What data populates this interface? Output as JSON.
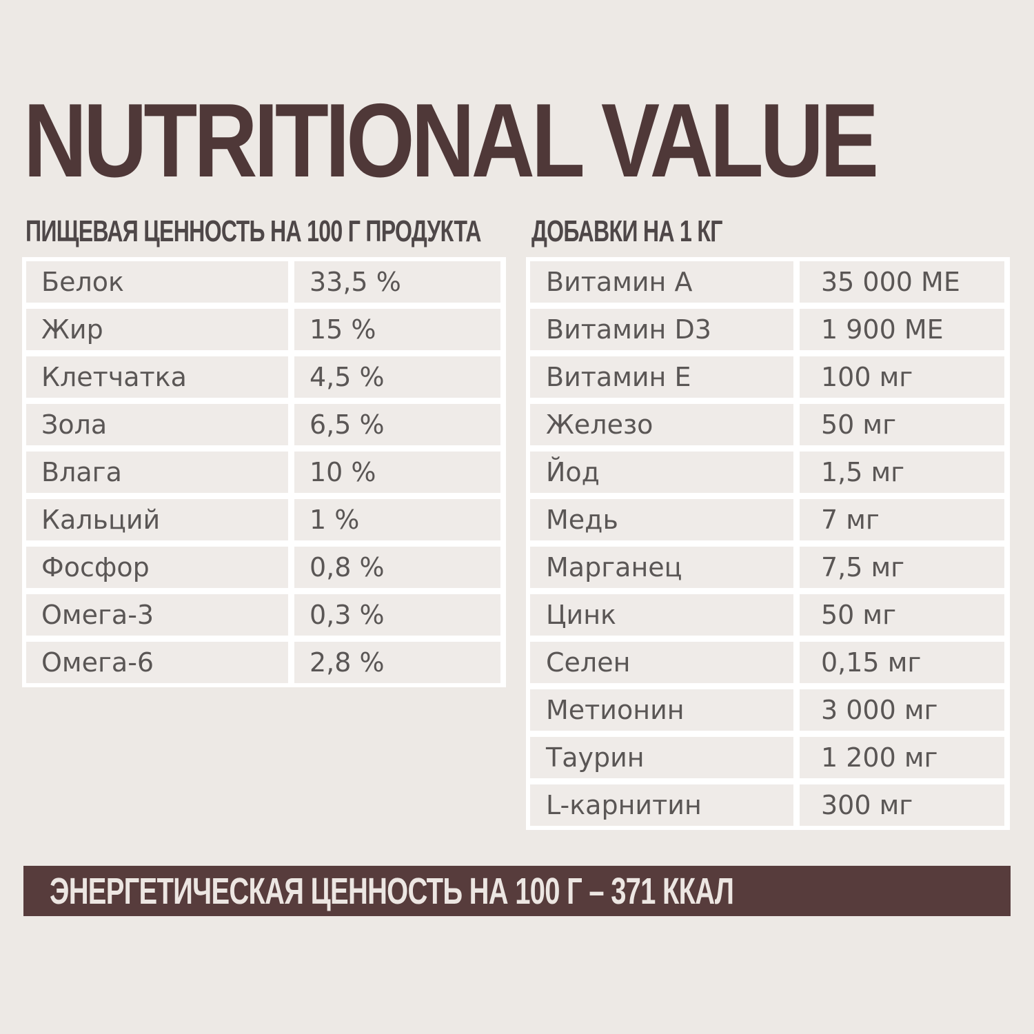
{
  "title": "NUTRITIONAL VALUE",
  "nutrition": {
    "heading": "ПИЩЕВАЯ ЦЕННОСТЬ НА 100 Г ПРОДУКТА",
    "rows": [
      {
        "name": "Белок",
        "value": "33,5 %"
      },
      {
        "name": "Жир",
        "value": "15 %"
      },
      {
        "name": "Клетчатка",
        "value": "4,5 %"
      },
      {
        "name": "Зола",
        "value": "6,5 %"
      },
      {
        "name": "Влага",
        "value": "10 %"
      },
      {
        "name": "Кальций",
        "value": "1 %"
      },
      {
        "name": "Фосфор",
        "value": "0,8 %"
      },
      {
        "name": "Омега-3",
        "value": "0,3 %"
      },
      {
        "name": "Омега-6",
        "value": "2,8 %"
      }
    ]
  },
  "additives": {
    "heading": "ДОБАВКИ НА 1 КГ",
    "rows": [
      {
        "name": "Витамин А",
        "value": "35 000 МЕ"
      },
      {
        "name": "Витамин D3",
        "value": "1 900 МЕ"
      },
      {
        "name": "Витамин Е",
        "value": "100 мг"
      },
      {
        "name": "Железо",
        "value": "50 мг"
      },
      {
        "name": "Йод",
        "value": "1,5 мг"
      },
      {
        "name": "Медь",
        "value": "7 мг"
      },
      {
        "name": "Марганец",
        "value": "7,5 мг"
      },
      {
        "name": "Цинк",
        "value": "50 мг"
      },
      {
        "name": "Селен",
        "value": "0,15 мг"
      },
      {
        "name": "Метионин",
        "value": "3 000 мг"
      },
      {
        "name": "Таурин",
        "value": "1 200 мг"
      },
      {
        "name": "L-карнитин",
        "value": "300 мг"
      }
    ]
  },
  "energy": "ЭНЕРГЕТИЧЕСКАЯ ЦЕННОСТЬ НА 100 Г – 371 ККАЛ",
  "colors": {
    "background": "#ede9e5",
    "title": "#4f3838",
    "band": "#573c3c",
    "cell": "#efebe8",
    "text": "#5a5655"
  }
}
